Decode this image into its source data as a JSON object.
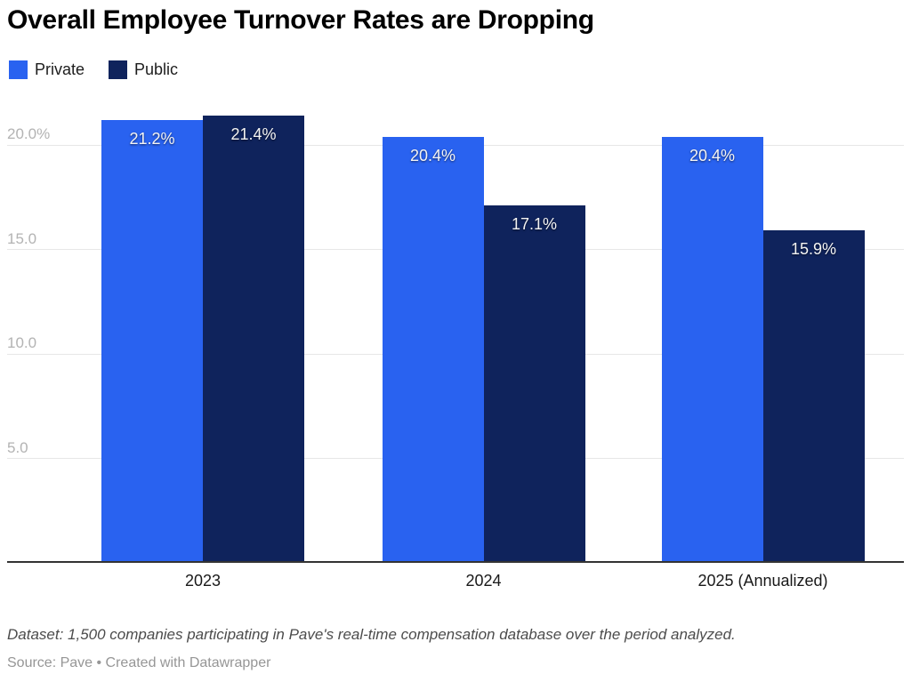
{
  "header": {
    "title": "Overall Employee Turnover Rates are Dropping"
  },
  "legend": {
    "items": [
      {
        "label": "Private",
        "color": "#2962F0"
      },
      {
        "label": "Public",
        "color": "#0F235C"
      }
    ]
  },
  "chart_data": {
    "type": "bar",
    "title": "Overall Employee Turnover Rates are Dropping",
    "categories": [
      "2023",
      "2024",
      "2025 (Annualized)"
    ],
    "series": [
      {
        "name": "Private",
        "color": "#2962F0",
        "values": [
          21.2,
          20.4,
          20.4
        ],
        "labels": [
          "21.2%",
          "20.4%",
          "20.4%"
        ]
      },
      {
        "name": "Public",
        "color": "#0F235C",
        "values": [
          21.4,
          17.1,
          15.9
        ],
        "labels": [
          "21.4%",
          "17.1%",
          "15.9%"
        ]
      }
    ],
    "yticks": [
      {
        "value": 20,
        "label": "20.0%"
      },
      {
        "value": 15,
        "label": "15.0"
      },
      {
        "value": 10,
        "label": "10.0"
      },
      {
        "value": 5,
        "label": "5.0"
      }
    ],
    "ylim": [
      0,
      21.5
    ],
    "xlabel": "",
    "ylabel": "",
    "grid": "horizontal",
    "legend_position": "top-left",
    "value_label_color": "#f4f4f4",
    "gridline_color": "#e7e7e7",
    "axis_color": "#333333"
  },
  "footer": {
    "dataset_note": "Dataset: 1,500 companies participating in Pave's real-time compensation database over the period analyzed.",
    "source_line": "Source: Pave • Created with Datawrapper"
  }
}
